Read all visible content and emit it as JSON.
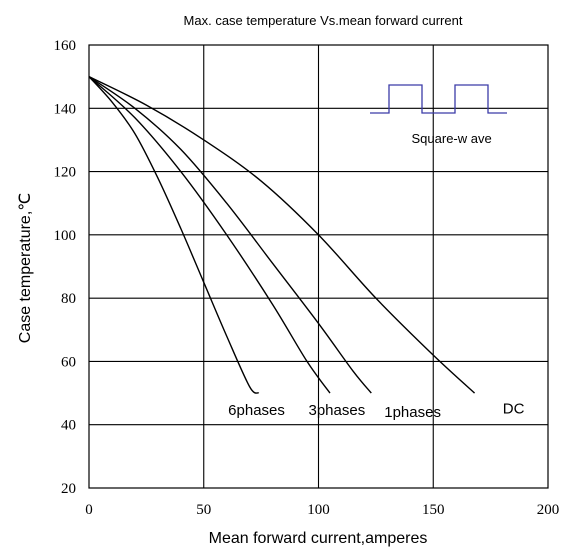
{
  "chart_data": {
    "type": "line",
    "title": "Max. case temperature  Vs.mean  forward current",
    "xlabel": "Mean forward  current,amperes",
    "ylabel": "Case temperature,℃",
    "xlim": [
      0,
      200
    ],
    "ylim": [
      20,
      160
    ],
    "xticks": [
      0,
      50,
      100,
      150,
      200
    ],
    "yticks": [
      20,
      40,
      60,
      80,
      100,
      120,
      140,
      160
    ],
    "grid": true,
    "series": [
      {
        "name": "6phases",
        "points": [
          [
            0,
            150
          ],
          [
            10,
            142
          ],
          [
            20,
            132
          ],
          [
            30,
            118
          ],
          [
            40,
            102
          ],
          [
            50,
            85
          ],
          [
            60,
            68
          ],
          [
            70,
            52
          ],
          [
            74,
            50
          ]
        ]
      },
      {
        "name": "3phases",
        "points": [
          [
            0,
            150
          ],
          [
            20,
            137
          ],
          [
            40,
            120
          ],
          [
            60,
            100
          ],
          [
            80,
            78
          ],
          [
            95,
            60
          ],
          [
            105,
            50
          ]
        ]
      },
      {
        "name": "1phases",
        "points": [
          [
            0,
            150
          ],
          [
            20,
            140
          ],
          [
            40,
            127
          ],
          [
            60,
            110
          ],
          [
            80,
            91
          ],
          [
            100,
            72
          ],
          [
            115,
            57
          ],
          [
            123,
            50
          ]
        ]
      },
      {
        "name": "DC",
        "points": [
          [
            0,
            150
          ],
          [
            25,
            141
          ],
          [
            50,
            130
          ],
          [
            75,
            117
          ],
          [
            100,
            100
          ],
          [
            125,
            80
          ],
          [
            150,
            62
          ],
          [
            168,
            50
          ]
        ]
      }
    ],
    "annotations": [
      {
        "text": "6phases",
        "x": 73,
        "y": 43
      },
      {
        "text": "3phases",
        "x": 108,
        "y": 43
      },
      {
        "text": "1phases",
        "x": 141,
        "y": 42.5
      },
      {
        "text": "DC",
        "x": 185,
        "y": 43.5
      },
      {
        "text": "Square-w ave",
        "x": 158,
        "y": 129
      }
    ],
    "inset_icon": "square-wave-icon"
  },
  "colors": {
    "curve": "#000000",
    "grid": "#000000",
    "wave": "#3b3ba8"
  }
}
